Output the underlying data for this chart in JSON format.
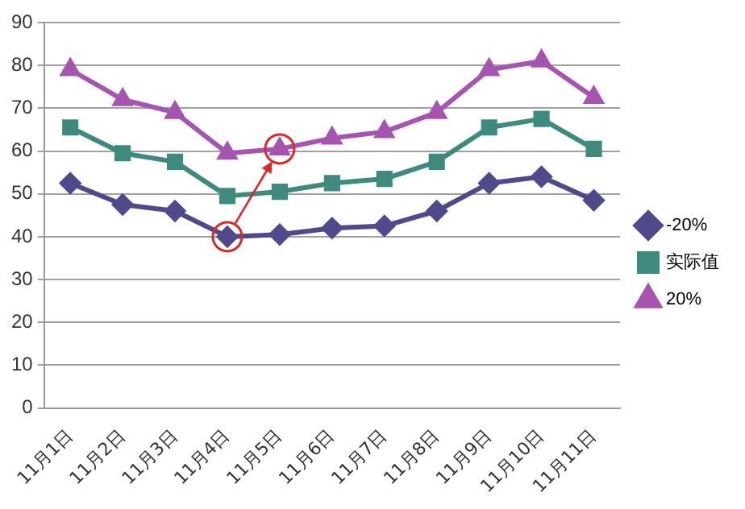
{
  "chart_data": {
    "type": "line",
    "categories": [
      "11月1日",
      "11月2日",
      "11月3日",
      "11月4日",
      "11月5日",
      "11月6日",
      "11月7日",
      "11月8日",
      "11月9日",
      "11月10日",
      "11月11日"
    ],
    "series": [
      {
        "name": "-20%",
        "color": "#4f4a8c",
        "marker": "diamond",
        "values": [
          52.5,
          47.5,
          46,
          40,
          40.5,
          42,
          42.5,
          46,
          52.5,
          54,
          48.5
        ]
      },
      {
        "name": "实际值",
        "color": "#3e8a7e",
        "marker": "square",
        "values": [
          65.5,
          59.5,
          57.5,
          49.5,
          50.5,
          52.5,
          53.5,
          57.5,
          65.5,
          67.5,
          60.5
        ]
      },
      {
        "name": "20%",
        "color": "#a555b0",
        "marker": "triangle",
        "values": [
          79,
          72,
          69,
          59.5,
          60.5,
          63,
          64.5,
          69,
          79,
          81,
          72.5
        ]
      }
    ],
    "ylim": [
      0,
      90
    ],
    "yticks": [
      0,
      10,
      20,
      30,
      40,
      50,
      60,
      70,
      80,
      90
    ],
    "grid": "y",
    "legend": "right"
  }
}
